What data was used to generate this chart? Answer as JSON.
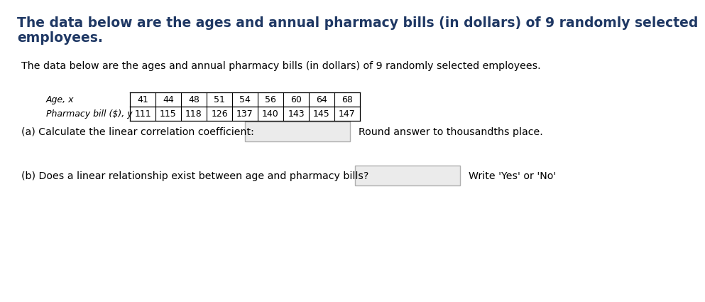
{
  "title_line1": "The data below are the ages and annual pharmacy bills (in dollars) of 9 randomly selected",
  "title_line2": "employees.",
  "subtitle": "The data below are the ages and annual pharmacy bills (in dollars) of 9 randomly selected employees.",
  "row1_label": "Age, x",
  "row2_label": "Pharmacy bill ($), y",
  "ages": [
    41,
    44,
    48,
    51,
    54,
    56,
    60,
    64,
    68
  ],
  "bills": [
    111,
    115,
    118,
    126,
    137,
    140,
    143,
    145,
    147
  ],
  "part_a_label": "(a) Calculate the linear correlation coefficient:",
  "part_a_suffix": "Round answer to thousandths place.",
  "part_b_label": "(b) Does a linear relationship exist between age and pharmacy bills?",
  "part_b_suffix": "Write 'Yes' or 'No'",
  "bg_color": "#ffffff",
  "title_color": "#1F3864",
  "body_color": "#000000",
  "table_line_color": "#000000"
}
